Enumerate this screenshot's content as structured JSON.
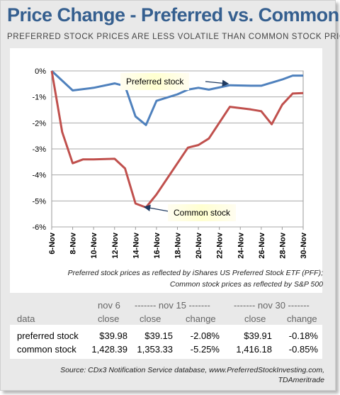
{
  "chart_data": {
    "type": "line",
    "title": "Price Change - Preferred vs. Common",
    "subtitle": "PREFERRED STOCK PRICES ARE LESS VOLATILE THAN COMMON STOCK PRICES",
    "x": [
      "6-Nov",
      "7-Nov",
      "8-Nov",
      "9-Nov",
      "10-Nov",
      "11-Nov",
      "12-Nov",
      "13-Nov",
      "14-Nov",
      "15-Nov",
      "16-Nov",
      "17-Nov",
      "18-Nov",
      "19-Nov",
      "20-Nov",
      "21-Nov",
      "22-Nov",
      "23-Nov",
      "24-Nov",
      "25-Nov",
      "26-Nov",
      "27-Nov",
      "28-Nov",
      "29-Nov",
      "30-Nov"
    ],
    "xticks": [
      "6-Nov",
      "8-Nov",
      "10-Nov",
      "12-Nov",
      "14-Nov",
      "16-Nov",
      "18-Nov",
      "20-Nov",
      "22-Nov",
      "24-Nov",
      "26-Nov",
      "28-Nov",
      "30-Nov"
    ],
    "yticks": [
      "0%",
      "-1%",
      "-2%",
      "-3%",
      "-4%",
      "-5%",
      "-6%"
    ],
    "ylim": [
      -6,
      0
    ],
    "grid": true,
    "series": [
      {
        "name": "Preferred stock",
        "color": "#4f81bd",
        "values": [
          0,
          null,
          -0.75,
          null,
          -0.65,
          null,
          -0.48,
          -0.58,
          -1.75,
          -2.08,
          -1.15,
          null,
          -0.9,
          -0.72,
          -0.65,
          -0.72,
          null,
          -0.55,
          null,
          -0.57,
          -0.57,
          null,
          -0.33,
          -0.18,
          -0.18
        ]
      },
      {
        "name": "Common stock",
        "color": "#c0504d",
        "values": [
          0,
          -2.35,
          -3.55,
          -3.4,
          -3.4,
          null,
          -3.38,
          -3.75,
          -5.1,
          -5.25,
          -4.75,
          null,
          -3.55,
          -2.95,
          -2.85,
          -2.6,
          null,
          -1.38,
          null,
          -1.48,
          -1.55,
          -2.05,
          -1.3,
          -0.87,
          -0.85
        ]
      }
    ],
    "annotations": [
      "Preferred stock",
      "Common stock"
    ],
    "note_line1": "Preferred stock prices as reflected by iShares US Preferred Stock ETF (PFF);",
    "note_line2": "Common stock prices as reflected by S&P 500"
  },
  "table": {
    "header1": {
      "nov6": "nov 6",
      "nov15": "------- nov 15 -------",
      "nov30": "------- nov 30 -------"
    },
    "header2": {
      "data": "data",
      "close1": "close",
      "close2": "close",
      "change1": "change",
      "close3": "close",
      "change2": "change"
    },
    "rows": [
      {
        "label": "preferred stock",
        "nov6_close": "$39.98",
        "nov15_close": "$39.15",
        "nov15_change": "-2.08%",
        "nov30_close": "$39.91",
        "nov30_change": "-0.18%"
      },
      {
        "label": "common stock",
        "nov6_close": "1,428.39",
        "nov15_close": "1,353.33",
        "nov15_change": "-5.25%",
        "nov30_close": "1,416.18",
        "nov30_change": "-0.85%"
      }
    ]
  },
  "source": "Source: CDx3 Notification Service database, www.PreferredStockInvesting.com, TDAmeritrade"
}
